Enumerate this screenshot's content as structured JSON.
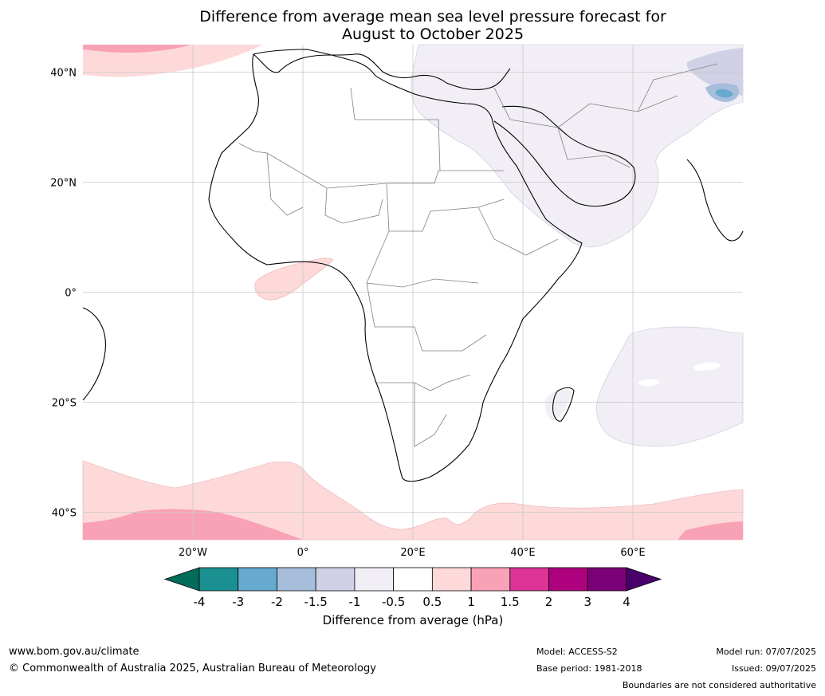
{
  "title": {
    "line1": "Difference from average mean sea level pressure forecast for",
    "line2": "August to October 2025"
  },
  "map": {
    "lat_labels": [
      "40°N",
      "20°N",
      "0°",
      "20°S",
      "40°S"
    ],
    "lon_labels": [
      "20°W",
      "0°",
      "20°E",
      "40°E",
      "60°E"
    ],
    "lat_values": [
      40,
      20,
      0,
      -20,
      -40
    ],
    "lon_values": [
      -20,
      0,
      20,
      40,
      60
    ],
    "extent": {
      "lon": [
        -40,
        80
      ],
      "lat": [
        -45,
        45
      ]
    }
  },
  "colorbar": {
    "ticks": [
      "-4",
      "-3",
      "-2",
      "-1.5",
      "-1",
      "-0.5",
      "0.5",
      "1",
      "1.5",
      "2",
      "3",
      "4"
    ],
    "colors": [
      "#1a9090",
      "#67a9cf",
      "#a6bddb",
      "#d0d1e6",
      "#f2eef6",
      "#ffffff",
      "#fdd9d9",
      "#f9a1b6",
      "#dd3497",
      "#ae017e",
      "#7a0177"
    ],
    "under_color": "#016c59",
    "over_color": "#49006a",
    "label": "Difference from average (hPa)"
  },
  "footer": {
    "website": "www.bom.gov.au/climate",
    "copyright": "© Commonwealth of Australia 2025, Australian Bureau of Meteorology",
    "model": "Model: ACCESS-S2",
    "base_period": "Base period: 1981-2018",
    "model_run": "Model run: 07/07/2025",
    "issued": "Issued: 09/07/2025",
    "disclaimer": "Boundaries are not considered authoritative"
  }
}
